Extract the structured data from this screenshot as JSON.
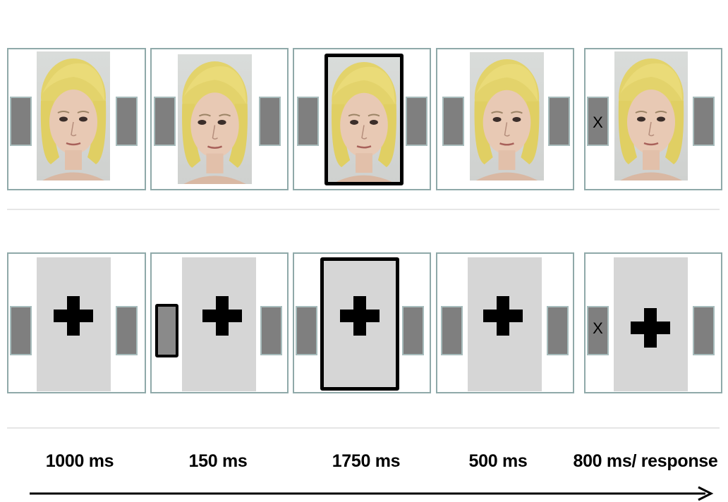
{
  "timeline": {
    "durations": [
      "1000 ms",
      "150 ms",
      "1750 ms",
      "500 ms",
      "800 ms/ response"
    ]
  },
  "response_mark": "X",
  "colors": {
    "frame_border": "#8fa9a9",
    "side_box": "#7f7f7f",
    "highlight": "#000000",
    "fixation_panel": "#d6d6d6"
  },
  "icons": [
    "fixation-cross-icon",
    "arrow-right-icon",
    "face-icon"
  ]
}
